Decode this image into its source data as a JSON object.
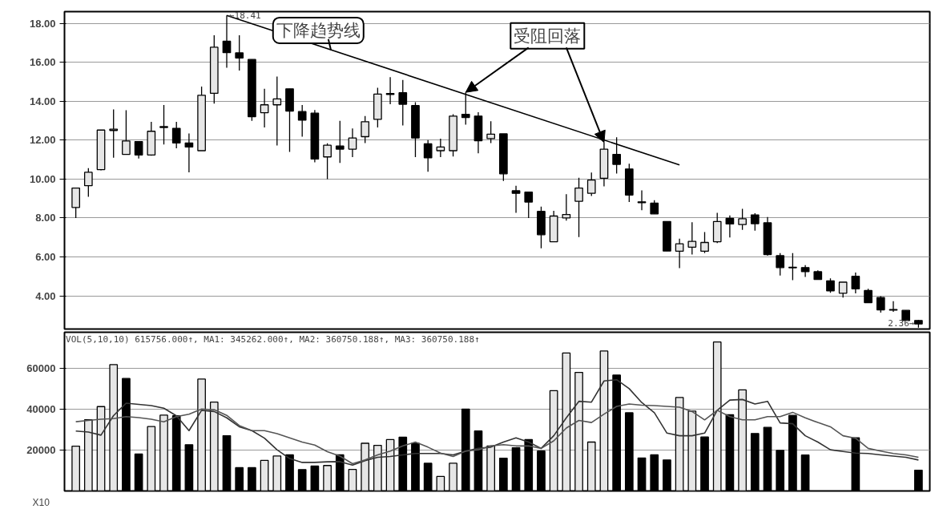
{
  "chart_data": [
    {
      "type": "candlestick",
      "categories": [
        null,
        null,
        null,
        null,
        null,
        null,
        null,
        null,
        null,
        null,
        null,
        null,
        null,
        null,
        null,
        null,
        null,
        null,
        null,
        null,
        null,
        null,
        null,
        null,
        null,
        null,
        null,
        null,
        null,
        null,
        null,
        null,
        null,
        null,
        null,
        null,
        null,
        null,
        null,
        null,
        null,
        null,
        null,
        null,
        null,
        null,
        null,
        null,
        null,
        null,
        null,
        null,
        null,
        null,
        null,
        null,
        null,
        null,
        null,
        null,
        null,
        null,
        null,
        null,
        null,
        null,
        null,
        null
      ],
      "ylim": [
        2.29,
        18.61
      ],
      "yticks": [
        {
          "value": 4,
          "label": "4.00"
        },
        {
          "value": 6,
          "label": "6.00"
        },
        {
          "value": 8,
          "label": "8.00"
        },
        {
          "value": 10,
          "label": "10.00"
        },
        {
          "value": 12,
          "label": "12.00"
        },
        {
          "value": 14,
          "label": "14.00"
        },
        {
          "value": 16,
          "label": "16.00"
        },
        {
          "value": 18,
          "label": "18.00"
        }
      ],
      "tick_labels": "y",
      "grid": "y",
      "ohlc": [
        [
          8.54,
          9.54,
          8.0,
          9.54
        ],
        [
          9.66,
          10.56,
          9.09,
          10.35
        ],
        [
          10.49,
          12.52,
          10.45,
          12.52
        ],
        [
          12.5,
          13.58,
          11.1,
          12.57
        ],
        [
          11.27,
          13.54,
          11.27,
          11.96
        ],
        [
          11.93,
          11.93,
          11.06,
          11.24
        ],
        [
          11.24,
          12.94,
          11.2,
          12.46
        ],
        [
          12.65,
          13.81,
          11.78,
          12.7
        ],
        [
          12.61,
          12.94,
          11.58,
          11.86
        ],
        [
          11.86,
          12.35,
          10.35,
          11.65
        ],
        [
          11.46,
          14.76,
          11.46,
          14.31
        ],
        [
          14.41,
          17.39,
          13.88,
          16.78
        ],
        [
          17.09,
          18.41,
          15.73,
          16.5
        ],
        [
          16.49,
          17.39,
          15.58,
          16.23
        ],
        [
          16.15,
          16.15,
          13.0,
          13.21
        ],
        [
          13.41,
          14.64,
          12.65,
          13.82
        ],
        [
          13.82,
          15.27,
          11.73,
          14.12
        ],
        [
          14.64,
          14.64,
          11.4,
          13.5
        ],
        [
          13.47,
          13.81,
          12.18,
          13.03
        ],
        [
          13.39,
          13.55,
          10.86,
          11.03
        ],
        [
          11.14,
          11.84,
          10.0,
          11.74
        ],
        [
          11.7,
          13.0,
          10.83,
          11.54
        ],
        [
          11.54,
          12.6,
          11.13,
          12.11
        ],
        [
          12.18,
          13.24,
          11.85,
          12.95
        ],
        [
          13.07,
          14.69,
          12.65,
          14.37
        ],
        [
          14.35,
          15.24,
          13.85,
          14.4
        ],
        [
          14.44,
          15.1,
          12.76,
          13.85
        ],
        [
          13.78,
          13.95,
          11.13,
          12.11
        ],
        [
          11.81,
          12.01,
          10.38,
          11.09
        ],
        [
          11.46,
          12.08,
          11.13,
          11.65
        ],
        [
          11.46,
          13.33,
          11.16,
          13.24
        ],
        [
          13.33,
          14.46,
          12.8,
          13.17
        ],
        [
          13.24,
          13.44,
          11.33,
          11.97
        ],
        [
          12.08,
          12.97,
          11.85,
          12.31
        ],
        [
          12.33,
          12.33,
          9.9,
          10.27
        ],
        [
          9.4,
          9.66,
          8.27,
          9.27
        ],
        [
          9.33,
          9.33,
          8.0,
          8.82
        ],
        [
          8.34,
          8.59,
          6.44,
          7.14
        ],
        [
          6.78,
          8.37,
          6.78,
          8.1
        ],
        [
          8.0,
          9.22,
          7.86,
          8.18
        ],
        [
          8.86,
          10.07,
          7.02,
          9.54
        ],
        [
          9.27,
          10.34,
          9.13,
          9.95
        ],
        [
          10.04,
          11.88,
          9.63,
          11.54
        ],
        [
          11.27,
          12.15,
          10.29,
          10.76
        ],
        [
          10.52,
          10.79,
          8.82,
          9.18
        ],
        [
          8.83,
          9.42,
          8.4,
          8.79
        ],
        [
          8.76,
          8.91,
          8.21,
          8.21
        ],
        [
          7.82,
          7.82,
          6.3,
          6.3
        ],
        [
          6.29,
          6.94,
          5.42,
          6.67
        ],
        [
          6.5,
          7.78,
          6.12,
          6.8
        ],
        [
          6.29,
          7.28,
          6.19,
          6.74
        ],
        [
          6.78,
          8.27,
          6.71,
          7.82
        ],
        [
          7.98,
          8.13,
          7.0,
          7.69
        ],
        [
          7.66,
          8.47,
          7.39,
          7.96
        ],
        [
          8.16,
          8.25,
          7.35,
          7.71
        ],
        [
          7.75,
          8.05,
          6.06,
          6.12
        ],
        [
          6.06,
          6.19,
          5.04,
          5.45
        ],
        [
          5.44,
          6.19,
          4.8,
          5.47
        ],
        [
          5.45,
          5.58,
          4.97,
          5.24
        ],
        [
          5.24,
          5.31,
          4.84,
          4.84
        ],
        [
          4.77,
          4.9,
          4.16,
          4.25
        ],
        [
          4.13,
          4.7,
          3.91,
          4.7
        ],
        [
          5.0,
          5.2,
          4.12,
          4.36
        ],
        [
          4.27,
          4.36,
          3.65,
          3.65
        ],
        [
          3.91,
          3.98,
          3.14,
          3.28
        ],
        [
          3.29,
          3.72,
          3.18,
          3.26
        ],
        [
          3.25,
          3.25,
          2.73,
          2.73
        ],
        [
          2.73,
          2.75,
          2.36,
          2.55
        ]
      ],
      "colors": [
        "#e6e6e6",
        "#e6e6e6",
        "#e6e6e6",
        "#e6e6e6",
        "#e6e6e6",
        "#000000",
        "#e6e6e6",
        "#e6e6e6",
        "#000000",
        "#000000",
        "#e6e6e6",
        "#e6e6e6",
        "#000000",
        "#000000",
        "#000000",
        "#e6e6e6",
        "#e6e6e6",
        "#000000",
        "#000000",
        "#000000",
        "#e6e6e6",
        "#000000",
        "#e6e6e6",
        "#e6e6e6",
        "#e6e6e6",
        "#e6e6e6",
        "#000000",
        "#000000",
        "#000000",
        "#e6e6e6",
        "#e6e6e6",
        "#000000",
        "#000000",
        "#e6e6e6",
        "#000000",
        "#000000",
        "#000000",
        "#000000",
        "#e6e6e6",
        "#e6e6e6",
        "#e6e6e6",
        "#e6e6e6",
        "#e6e6e6",
        "#000000",
        "#000000",
        "#000000",
        "#000000",
        "#000000",
        "#e6e6e6",
        "#e6e6e6",
        "#e6e6e6",
        "#e6e6e6",
        "#000000",
        "#e6e6e6",
        "#000000",
        "#000000",
        "#000000",
        "#e6e6e6",
        "#000000",
        "#000000",
        "#000000",
        "#e6e6e6",
        "#000000",
        "#000000",
        "#000000",
        "#000000",
        "#000000",
        "#000000"
      ],
      "series": [
        {
          "type": "line",
          "values": [
            null,
            null,
            null,
            null,
            null,
            null,
            null,
            null,
            null,
            null,
            null,
            null,
            18.41,
            null,
            null,
            null,
            null,
            null,
            null,
            null,
            null,
            null,
            null,
            null,
            null,
            null,
            null,
            null,
            null,
            null,
            null,
            null,
            null,
            null,
            null,
            null,
            null,
            null,
            null,
            null,
            null,
            null,
            null,
            null,
            null,
            null,
            null,
            null,
            10.73,
            null,
            null,
            null,
            null,
            null,
            null,
            null,
            null,
            null,
            null,
            null,
            null,
            null,
            null,
            null,
            null,
            null,
            null,
            null
          ],
          "color": "#000000"
        }
      ],
      "annotations": [
        "←18.41",
        "下降趋势线",
        "受阻回落",
        "2.36→"
      ]
    },
    {
      "type": "bar",
      "categories": [
        null,
        null,
        null,
        null,
        null,
        null,
        null,
        null,
        null,
        null,
        null,
        null,
        null,
        null,
        null,
        null,
        null,
        null,
        null,
        null,
        null,
        null,
        null,
        null,
        null,
        null,
        null,
        null,
        null,
        null,
        null,
        null,
        null,
        null,
        null,
        null,
        null,
        null,
        null,
        null,
        null,
        null,
        null,
        null,
        null,
        null,
        null,
        null,
        null,
        null,
        null,
        null,
        null,
        null,
        null,
        null,
        null,
        null,
        null,
        null,
        null,
        null,
        null,
        null,
        null,
        null,
        null,
        null
      ],
      "ylim": [
        0,
        77900
      ],
      "yticks": [
        20000,
        40000,
        60000
      ],
      "tick_labels": "y",
      "grid": "y",
      "series": [
        {
          "type": "bar",
          "values": [
            22000,
            35000,
            41400,
            62000,
            55200,
            18100,
            31600,
            37200,
            36900,
            22700,
            54900,
            43600,
            27100,
            11400,
            11400,
            15000,
            17200,
            17700,
            10500,
            12200,
            12500,
            17700,
            10600,
            23400,
            22400,
            25200,
            26400,
            23400,
            13600,
            7100,
            13600,
            40200,
            29400,
            22100,
            16100,
            21200,
            25200,
            19600,
            49200,
            67700,
            58200,
            24000,
            68700,
            56900,
            38400,
            16200,
            17700,
            15200,
            45900,
            39200,
            26500,
            73100,
            37400,
            49600,
            28200,
            31200,
            19900,
            37100,
            17600,
            null,
            null,
            null,
            26100,
            null,
            null,
            null,
            null,
            10200
          ],
          "colors": [
            "#e6e6e6",
            "#e6e6e6",
            "#e6e6e6",
            "#e6e6e6",
            "#000000",
            "#000000",
            "#e6e6e6",
            "#e6e6e6",
            "#000000",
            "#000000",
            "#e6e6e6",
            "#e6e6e6",
            "#000000",
            "#000000",
            "#000000",
            "#e6e6e6",
            "#e6e6e6",
            "#000000",
            "#000000",
            "#000000",
            "#e6e6e6",
            "#000000",
            "#e6e6e6",
            "#e6e6e6",
            "#e6e6e6",
            "#e6e6e6",
            "#000000",
            "#000000",
            "#000000",
            "#e6e6e6",
            "#e6e6e6",
            "#000000",
            "#000000",
            "#e6e6e6",
            "#000000",
            "#000000",
            "#000000",
            "#000000",
            "#e6e6e6",
            "#e6e6e6",
            "#e6e6e6",
            "#e6e6e6",
            "#e6e6e6",
            "#000000",
            "#000000",
            "#000000",
            "#000000",
            "#000000",
            "#e6e6e6",
            "#e6e6e6",
            "#000000",
            "#e6e6e6",
            "#000000",
            "#e6e6e6",
            "#000000",
            "#000000",
            "#000000",
            "#000000",
            "#000000",
            "#000000",
            "#000000",
            "#e6e6e6",
            "#000000",
            "#000000",
            "#000000",
            "#000000",
            "#000000",
            "#000000"
          ]
        },
        {
          "type": "line",
          "color": "#333333",
          "values": [
            29400,
            28900,
            27400,
            37000,
            43100,
            42500,
            41900,
            40600,
            36900,
            29600,
            39600,
            39000,
            35900,
            31500,
            29600,
            25900,
            20200,
            15900,
            14000,
            14000,
            14300,
            14400,
            12700,
            14900,
            16500,
            16900,
            17700,
            18400,
            18400,
            18400,
            17700,
            19600,
            20900,
            21500,
            24000,
            26100,
            24000,
            20900,
            27100,
            35900,
            44000,
            43600,
            54000,
            54600,
            50200,
            43400,
            38400,
            28400,
            27100,
            27100,
            28400,
            39600,
            44600,
            44900,
            42700,
            44000,
            33400,
            33000,
            27100,
            24000,
            20200,
            19400,
            18600,
            18400,
            17700,
            17100,
            16500,
            15200
          ]
        },
        {
          "type": "line",
          "color": "#555555",
          "values": [
            34000,
            34600,
            35200,
            35500,
            36500,
            36000,
            35200,
            33900,
            36500,
            37700,
            40200,
            39900,
            37100,
            32100,
            29600,
            29600,
            28100,
            26100,
            24000,
            22500,
            19300,
            17100,
            13400,
            15200,
            17700,
            19600,
            22100,
            24000,
            21500,
            18600,
            16900,
            19600,
            20200,
            22100,
            22700,
            22100,
            22100,
            20900,
            24600,
            30900,
            34600,
            33600,
            37700,
            41500,
            42700,
            42100,
            41900,
            41500,
            41100,
            39000,
            34900,
            39600,
            36500,
            34900,
            34900,
            36500,
            36500,
            38600,
            35900,
            33600,
            31500,
            27100,
            25900,
            20900,
            19600,
            18400,
            17700,
            16500
          ]
        }
      ],
      "annotations": [
        "VOL(5,10,10) 615756.000↑, MA1: 345262.000↑, MA2: 360750.188↑, MA3: 360750.188↑",
        "X10"
      ]
    }
  ]
}
